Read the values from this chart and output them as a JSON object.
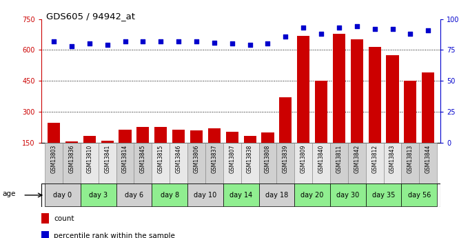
{
  "title": "GDS605 / 94942_at",
  "samples": [
    "GSM13803",
    "GSM13836",
    "GSM13810",
    "GSM13841",
    "GSM13814",
    "GSM13845",
    "GSM13815",
    "GSM13846",
    "GSM13806",
    "GSM13837",
    "GSM13807",
    "GSM13838",
    "GSM13808",
    "GSM13839",
    "GSM13809",
    "GSM13840",
    "GSM13811",
    "GSM13842",
    "GSM13812",
    "GSM13843",
    "GSM13813",
    "GSM13844"
  ],
  "counts": [
    248,
    156,
    183,
    160,
    215,
    228,
    228,
    215,
    210,
    220,
    205,
    185,
    200,
    370,
    670,
    450,
    680,
    650,
    615,
    575,
    450,
    490
  ],
  "percentile": [
    82,
    78,
    80,
    79,
    82,
    82,
    82,
    82,
    82,
    81,
    80,
    79,
    80,
    86,
    93,
    88,
    93,
    94,
    92,
    92,
    88,
    91
  ],
  "day_groups": [
    {
      "label": "day 0",
      "indices": [
        0,
        1
      ],
      "color": "#d0d0d0"
    },
    {
      "label": "day 3",
      "indices": [
        2,
        3
      ],
      "color": "#90ee90"
    },
    {
      "label": "day 6",
      "indices": [
        4,
        5
      ],
      "color": "#d0d0d0"
    },
    {
      "label": "day 8",
      "indices": [
        6,
        7
      ],
      "color": "#90ee90"
    },
    {
      "label": "day 10",
      "indices": [
        8,
        9
      ],
      "color": "#d0d0d0"
    },
    {
      "label": "day 14",
      "indices": [
        10,
        11
      ],
      "color": "#90ee90"
    },
    {
      "label": "day 18",
      "indices": [
        12,
        13
      ],
      "color": "#d0d0d0"
    },
    {
      "label": "day 20",
      "indices": [
        14,
        15
      ],
      "color": "#90ee90"
    },
    {
      "label": "day 30",
      "indices": [
        16,
        17
      ],
      "color": "#90ee90"
    },
    {
      "label": "day 35",
      "indices": [
        18,
        19
      ],
      "color": "#90ee90"
    },
    {
      "label": "day 56",
      "indices": [
        20,
        21
      ],
      "color": "#90ee90"
    }
  ],
  "sample_bg_odd": "#d0d0d0",
  "sample_bg_even": "#e8e8e8",
  "ylim_left": [
    150,
    750
  ],
  "ylim_right": [
    0,
    100
  ],
  "yticks_left": [
    150,
    300,
    450,
    600,
    750
  ],
  "yticks_right": [
    0,
    25,
    50,
    75,
    100
  ],
  "bar_color": "#cc0000",
  "scatter_color": "#0000cc",
  "background_color": "#ffffff",
  "grid_color": "#000000",
  "legend_count_color": "#cc0000",
  "legend_pct_color": "#0000cc"
}
